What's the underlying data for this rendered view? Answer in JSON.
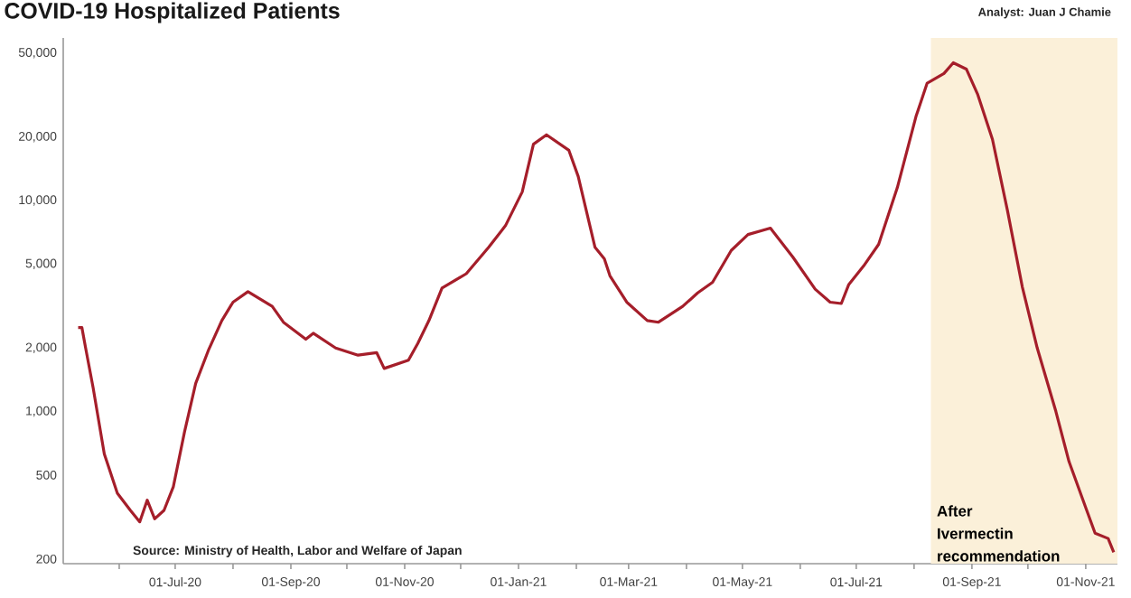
{
  "chart_data": {
    "type": "line",
    "title": "COVID-19 Hospitalized Patients",
    "annotations": [
      "Analyst: Juan J Chamie",
      "Source: Ministry of Health, Labor and Welfare of Japan"
    ],
    "x": [
      "2020-05-10",
      "2020-05-12",
      "2020-05-14",
      "2020-05-18",
      "2020-05-24",
      "2020-05-31",
      "2020-06-07",
      "2020-06-12",
      "2020-06-16",
      "2020-06-20",
      "2020-06-25",
      "2020-06-30",
      "2020-07-06",
      "2020-07-12",
      "2020-07-19",
      "2020-07-26",
      "2020-08-01",
      "2020-08-09",
      "2020-08-22",
      "2020-08-28",
      "2020-09-09",
      "2020-09-13",
      "2020-09-25",
      "2020-10-07",
      "2020-10-17",
      "2020-10-21",
      "2020-11-03",
      "2020-11-08",
      "2020-11-14",
      "2020-11-21",
      "2020-12-04",
      "2020-12-16",
      "2020-12-25",
      "2021-01-03",
      "2021-01-09",
      "2021-01-16",
      "2021-01-28",
      "2021-02-02",
      "2021-02-11",
      "2021-02-16",
      "2021-02-19",
      "2021-02-28",
      "2021-03-11",
      "2021-03-17",
      "2021-03-30",
      "2021-04-07",
      "2021-04-15",
      "2021-04-25",
      "2021-05-04",
      "2021-05-16",
      "2021-05-28",
      "2021-06-09",
      "2021-06-17",
      "2021-06-23",
      "2021-06-27",
      "2021-07-05",
      "2021-07-13",
      "2021-07-23",
      "2021-08-02",
      "2021-08-08",
      "2021-08-17",
      "2021-08-22",
      "2021-08-29",
      "2021-09-04",
      "2021-09-12",
      "2021-09-20",
      "2021-09-28",
      "2021-10-06",
      "2021-10-16",
      "2021-10-23",
      "2021-11-01",
      "2021-11-06",
      "2021-11-13",
      "2021-11-16"
    ],
    "series": [
      {
        "color": "#a51e2a",
        "values": [
          2500,
          2500,
          2000,
          1300,
          630,
          410,
          340,
          300,
          380,
          310,
          340,
          440,
          800,
          1360,
          1970,
          2700,
          3300,
          3700,
          3150,
          2650,
          2200,
          2350,
          2000,
          1850,
          1900,
          1600,
          1750,
          2100,
          2700,
          3850,
          4500,
          6000,
          7600,
          11000,
          18500,
          20500,
          17300,
          13000,
          6000,
          5300,
          4400,
          3300,
          2700,
          2650,
          3150,
          3650,
          4100,
          5800,
          6900,
          7400,
          5400,
          3800,
          3300,
          3250,
          4000,
          4900,
          6200,
          11500,
          25000,
          36000,
          40000,
          45000,
          42000,
          32000,
          19500,
          9000,
          3900,
          2000,
          1000,
          580,
          350,
          265,
          250,
          215
        ]
      }
    ],
    "xlim": [
      "2020-05-02",
      "2021-11-18"
    ],
    "xticks": [
      {
        "value": "2020-06-01",
        "label": null
      },
      {
        "value": "2020-07-01",
        "label": "01-Jul-20"
      },
      {
        "value": "2020-08-01",
        "label": null
      },
      {
        "value": "2020-09-01",
        "label": "01-Sep-20"
      },
      {
        "value": "2020-10-01",
        "label": null
      },
      {
        "value": "2020-11-01",
        "label": "01-Nov-20"
      },
      {
        "value": "2020-12-01",
        "label": null
      },
      {
        "value": "2021-01-01",
        "label": "01-Jan-21"
      },
      {
        "value": "2021-02-01",
        "label": null
      },
      {
        "value": "2021-03-01",
        "label": "01-Mar-21"
      },
      {
        "value": "2021-04-01",
        "label": null
      },
      {
        "value": "2021-05-01",
        "label": "01-May-21"
      },
      {
        "value": "2021-06-01",
        "label": null
      },
      {
        "value": "2021-07-01",
        "label": "01-Jul-21"
      },
      {
        "value": "2021-08-01",
        "label": null
      },
      {
        "value": "2021-09-01",
        "label": "01-Sep-21"
      },
      {
        "value": "2021-10-01",
        "label": null
      },
      {
        "value": "2021-11-01",
        "label": "01-Nov-21"
      }
    ],
    "log": "y",
    "ylim": [
      190,
      59000
    ],
    "yticks": [
      200,
      500,
      {
        "value": 1000,
        "label": "1,000"
      },
      {
        "value": 2000,
        "label": "2,000"
      },
      {
        "value": 5000,
        "label": "5,000"
      },
      {
        "value": 10000,
        "label": "10,000"
      },
      {
        "value": 20000,
        "label": "20,000"
      },
      {
        "value": 50000,
        "label": "50,000"
      }
    ],
    "bands": [
      {
        "axis": "x",
        "from": "2021-08-10",
        "to": "2021-11-18",
        "label": "After Ivermectin recommendation",
        "color": "#fbf0d9"
      }
    ],
    "grid": false
  }
}
